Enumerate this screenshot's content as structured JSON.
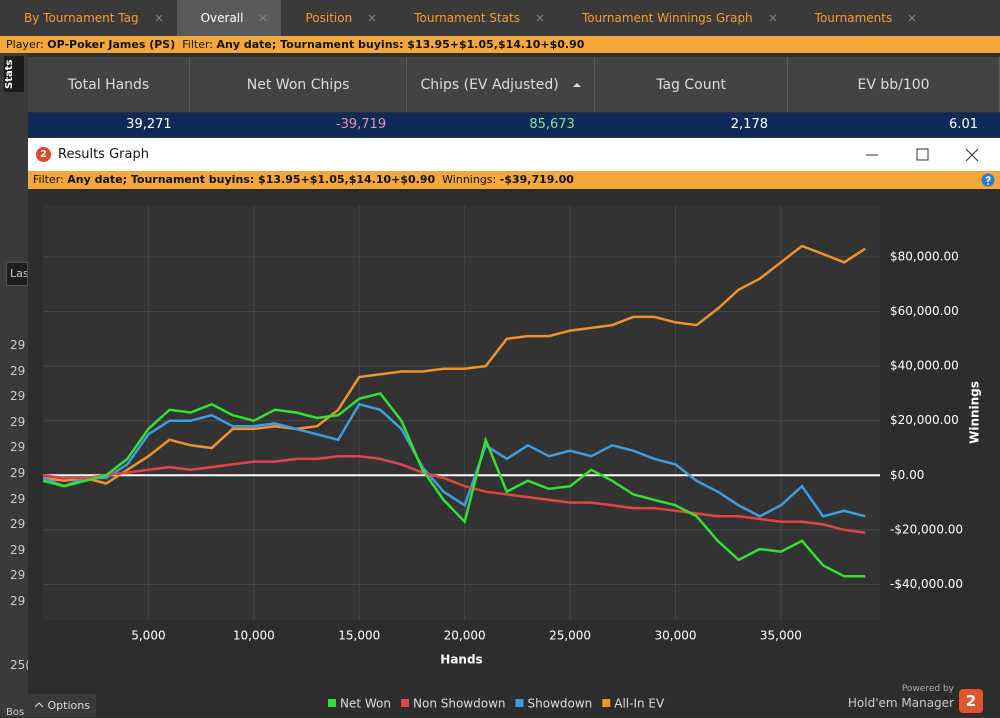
{
  "tabs": [
    "By Tournament Tag",
    "Overall",
    "Position",
    "Tournament Stats",
    "Tournament Winnings Graph",
    "Tournaments"
  ],
  "active_tab": 1,
  "filter_bar": {
    "player_label": "Player:",
    "player": "OP-Poker James (PS)",
    "filter_label": "Filter:",
    "filter": "Any date; Tournament buyins: $13.95+$1.05,$14.10+$0.90"
  },
  "stats": {
    "side_label": "Stats",
    "headers": [
      "Total Hands",
      "Net Won Chips",
      "Chips (EV Adjusted)",
      "Tag Count",
      "EV bb/100"
    ],
    "row": [
      "39,271",
      "-39,719",
      "85,673",
      "2,178",
      "6.01"
    ]
  },
  "background": {
    "input": "Las",
    "rows": [
      "29",
      "29",
      "29",
      "29",
      "29",
      "29",
      "29",
      "29",
      "29",
      "29",
      "29"
    ],
    "lower_row": "25(",
    "bottom": "Bos"
  },
  "window": {
    "logo_text": "2",
    "title": "Results Graph",
    "filter_label": "Filter:",
    "filter": "Any date; Tournament buyins: $13.95+$1.05,$14.10+$0.90",
    "winnings_label": "Winnings:",
    "winnings": "-$39,719.00"
  },
  "footer": {
    "options": "Options",
    "powered_by": "Powered by",
    "brand": "Hold'em Manager",
    "logo_text": "2"
  },
  "chart_data": {
    "type": "line",
    "x_label": "Hands",
    "y_label": "Winnings",
    "y_axis_side": "right",
    "grid": true,
    "legend": "bottom",
    "x": [
      0,
      1000,
      2000,
      3000,
      4000,
      5000,
      6000,
      7000,
      8000,
      9000,
      10000,
      11000,
      12000,
      13000,
      14000,
      15000,
      16000,
      17000,
      18000,
      19000,
      20000,
      21000,
      22000,
      23000,
      24000,
      25000,
      26000,
      27000,
      28000,
      29000,
      30000,
      31000,
      32000,
      33000,
      34000,
      35000,
      36000,
      37000,
      38000,
      39000
    ],
    "xlim": [
      0,
      39700
    ],
    "xticks": [
      {
        "value": 5000,
        "label": "5,000"
      },
      {
        "value": 10000,
        "label": "10,000"
      },
      {
        "value": 15000,
        "label": "15,000"
      },
      {
        "value": 20000,
        "label": "20,000"
      },
      {
        "value": 25000,
        "label": "25,000"
      },
      {
        "value": 30000,
        "label": "30,000"
      },
      {
        "value": 35000,
        "label": "35,000"
      }
    ],
    "ylim": [
      -53000,
      99000
    ],
    "yticks": [
      {
        "value": -40000,
        "label": "-$40,000.00"
      },
      {
        "value": -20000,
        "label": "-$20,000.00"
      },
      {
        "value": 0,
        "label": "$0.00"
      },
      {
        "value": 20000,
        "label": "$20,000.00"
      },
      {
        "value": 40000,
        "label": "$40,000.00"
      },
      {
        "value": 60000,
        "label": "$60,000.00"
      },
      {
        "value": 80000,
        "label": "$80,000.00"
      }
    ],
    "series": [
      {
        "name": "Net Won",
        "color": "#33e033",
        "values": [
          -2000,
          -4000,
          -2000,
          0,
          6000,
          17000,
          24000,
          23000,
          26000,
          22000,
          20000,
          24000,
          23000,
          21000,
          22000,
          28000,
          30000,
          20000,
          2000,
          -9000,
          -17000,
          13000,
          -6000,
          -2000,
          -5000,
          -4000,
          2000,
          -2000,
          -7000,
          -9000,
          -11000,
          -15000,
          -24000,
          -31000,
          -27000,
          -28000,
          -24000,
          -33000,
          -37000,
          -37000
        ]
      },
      {
        "name": "Non Showdown",
        "color": "#e04444",
        "values": [
          0,
          -1000,
          -1000,
          0,
          1000,
          2000,
          3000,
          2000,
          3000,
          4000,
          5000,
          5000,
          6000,
          6000,
          7000,
          7000,
          6000,
          4000,
          1000,
          -1000,
          -4000,
          -6000,
          -7000,
          -8000,
          -9000,
          -10000,
          -10000,
          -11000,
          -12000,
          -12000,
          -13000,
          -14000,
          -15000,
          -15000,
          -16000,
          -17000,
          -17000,
          -18000,
          -20000,
          -21000
        ]
      },
      {
        "name": "Showdown",
        "color": "#3d9ee0",
        "values": [
          -1000,
          -4000,
          -1000,
          -1000,
          4000,
          15000,
          20000,
          20000,
          22000,
          18000,
          18000,
          19000,
          17000,
          15000,
          13000,
          26000,
          24000,
          17000,
          3000,
          -6000,
          -11000,
          11000,
          6000,
          11000,
          7000,
          9000,
          7000,
          11000,
          9000,
          6000,
          4000,
          -2000,
          -6000,
          -11000,
          -15000,
          -11000,
          -4000,
          -15000,
          -13000,
          -15000
        ]
      },
      {
        "name": "All-In EV",
        "color": "#f0922e",
        "values": [
          -1000,
          -2000,
          -1000,
          -3000,
          2000,
          7000,
          13000,
          11000,
          10000,
          17000,
          17000,
          18000,
          17000,
          18000,
          24000,
          36000,
          37000,
          38000,
          38000,
          39000,
          39000,
          40000,
          50000,
          51000,
          51000,
          53000,
          54000,
          55000,
          58000,
          58000,
          56000,
          55000,
          61000,
          68000,
          72000,
          78000,
          84000,
          81000,
          78000,
          83000
        ]
      }
    ]
  }
}
